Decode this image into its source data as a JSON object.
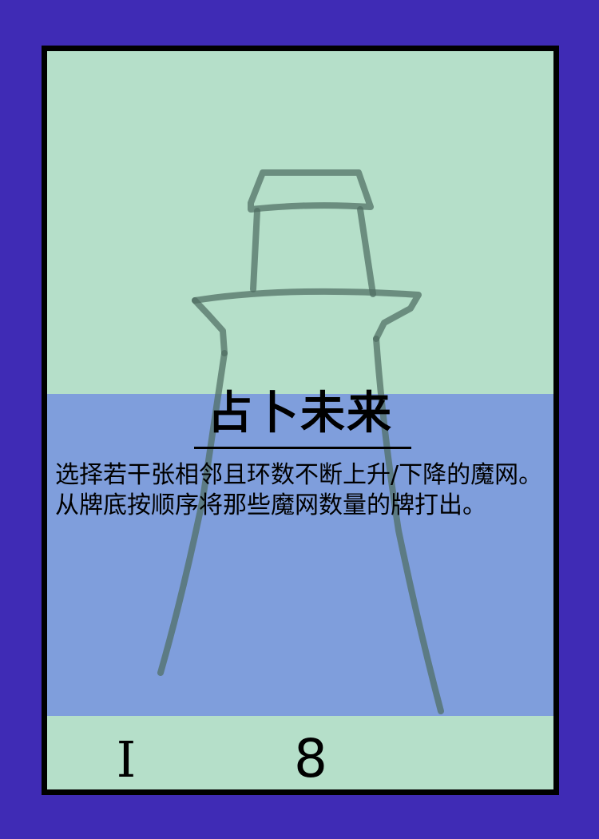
{
  "card": {
    "title": "占卜未来",
    "description": "选择若干张相邻且环数不断上升/下降的魔网。从牌底按顺序将那些魔网数量的牌打出。",
    "tier": "I",
    "cost": "8",
    "art_icon": "lighthouse-icon"
  },
  "colors": {
    "background": "#3f2bb5",
    "card_fill": "#b5dfc9",
    "text_panel": "#7f9edc",
    "border": "#000000",
    "art_stroke": "#5a7a6e"
  }
}
